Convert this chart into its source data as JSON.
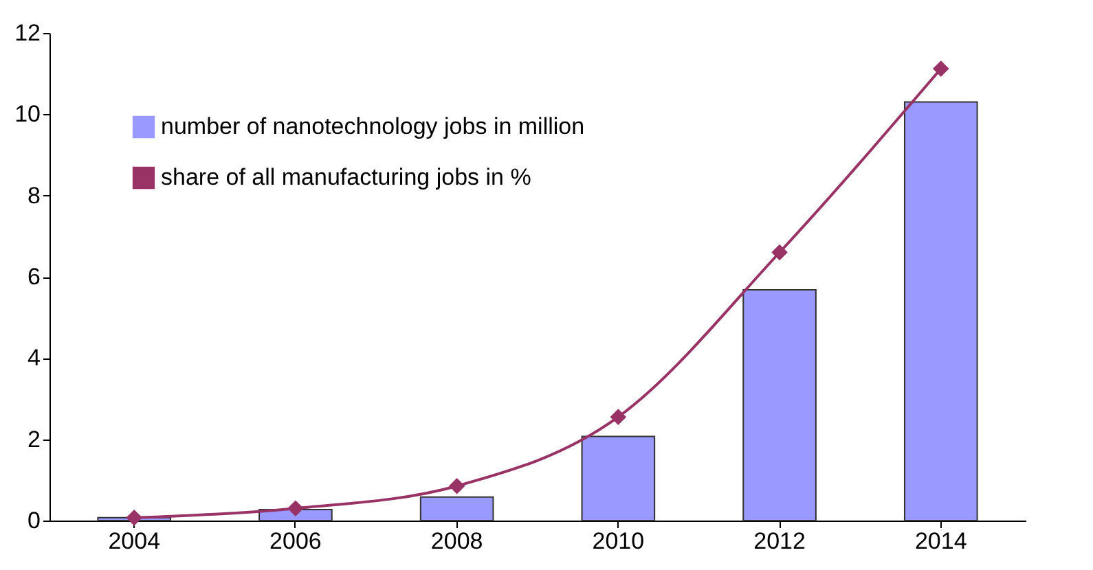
{
  "chart_data": {
    "type": "bar",
    "categories": [
      "2004",
      "2006",
      "2008",
      "2010",
      "2012",
      "2014"
    ],
    "series": [
      {
        "name": "number of nanotechnology jobs in million",
        "color": "#9999ff",
        "values": [
          0.07,
          0.27,
          0.58,
          2.07,
          5.68,
          10.3
        ]
      },
      {
        "name": "share of all manufacturing jobs in %",
        "color": "#993366",
        "type": "line",
        "marker": "diamond",
        "line_style": "solid",
        "values": [
          0.07,
          0.3,
          0.85,
          2.55,
          6.6,
          11.12
        ]
      }
    ],
    "ylim": [
      0,
      12
    ],
    "yticks": [
      0,
      2,
      4,
      6,
      8,
      10,
      12
    ],
    "grid": false,
    "legend": "top left"
  }
}
